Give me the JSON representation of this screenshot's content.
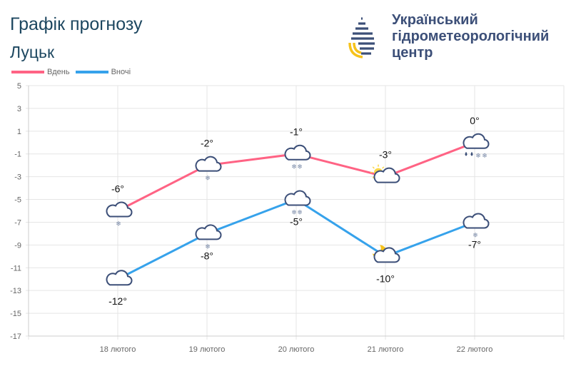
{
  "header": {
    "title": "Графік прогнозу",
    "city": "Луцьк",
    "org_lines": [
      "Український",
      "гідрометеорологічний",
      "центр"
    ]
  },
  "chart_data": {
    "type": "line",
    "categories": [
      "18 лютого",
      "19 лютого",
      "20 лютого",
      "21 лютого",
      "22 лютого"
    ],
    "series": [
      {
        "name": "Вдень",
        "color": "#ff6384",
        "values": [
          -6,
          -2,
          -1,
          -3,
          0
        ],
        "labels": [
          "-6°",
          "-2°",
          "-1°",
          "-3°",
          "0°"
        ],
        "icons": [
          "cloud-snow",
          "cloud-snow",
          "cloud-snow-heavy",
          "sun-cloud",
          "cloud-rain-snow"
        ]
      },
      {
        "name": "Вночі",
        "color": "#36a2eb",
        "values": [
          -12,
          -8,
          -5,
          -10,
          -7
        ],
        "labels": [
          "-12°",
          "-8°",
          "-5°",
          "-10°",
          "-7°"
        ],
        "icons": [
          "cloud",
          "cloud-snow",
          "cloud-snow-heavy",
          "moon-cloud",
          "cloud-snow"
        ]
      }
    ],
    "yticks": [
      "5",
      "3",
      "1",
      "-1",
      "-3",
      "-5",
      "-7",
      "-9",
      "-11",
      "-13",
      "-15",
      "-17"
    ],
    "ylim": [
      -17,
      5
    ],
    "grid": true,
    "legend": "top-left"
  }
}
